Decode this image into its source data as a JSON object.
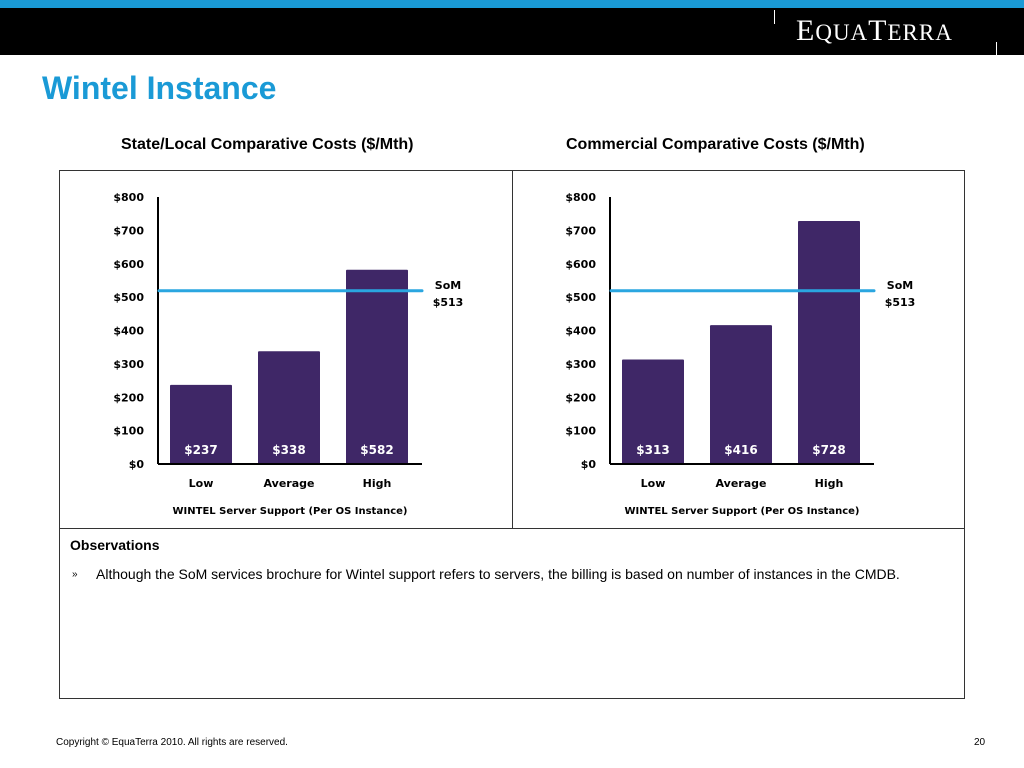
{
  "brand": {
    "accent": "#1a9ad6",
    "bar_color": "#3f2767",
    "som_line_color": "#2aa6e0"
  },
  "logo": {
    "letters": [
      "E",
      "QUA",
      "T",
      "ERRA"
    ]
  },
  "slide": {
    "title": "Wintel Instance",
    "page_number": "20"
  },
  "headings": {
    "left": "State/Local Comparative Costs ($/Mth)",
    "right": "Commercial Comparative Costs ($/Mth)"
  },
  "chart_data": [
    {
      "type": "bar",
      "title": "State/Local Comparative Costs ($/Mth)",
      "categories": [
        "Low",
        "Average",
        "High"
      ],
      "values": [
        237,
        338,
        582
      ],
      "value_labels": [
        "$237",
        "$338",
        "$582"
      ],
      "xlabel": "WINTEL Server Support  (Per OS Instance)",
      "ylabel": "",
      "ylim": [
        0,
        800
      ],
      "yticks": [
        0,
        100,
        200,
        300,
        400,
        500,
        600,
        700,
        800
      ],
      "ytick_labels": [
        "$0",
        "$100",
        "$200",
        "$300",
        "$400",
        "$500",
        "$600",
        "$700",
        "$800"
      ],
      "reference_line": {
        "value": 513,
        "label_line1": "SoM",
        "label_line2": "$513"
      },
      "grid": false,
      "legend": "none"
    },
    {
      "type": "bar",
      "title": "Commercial Comparative Costs ($/Mth)",
      "categories": [
        "Low",
        "Average",
        "High"
      ],
      "values": [
        313,
        416,
        728
      ],
      "value_labels": [
        "$313",
        "$416",
        "$728"
      ],
      "xlabel": "WINTEL Server Support  (Per OS Instance)",
      "ylabel": "",
      "ylim": [
        0,
        800
      ],
      "yticks": [
        0,
        100,
        200,
        300,
        400,
        500,
        600,
        700,
        800
      ],
      "ytick_labels": [
        "$0",
        "$100",
        "$200",
        "$300",
        "$400",
        "$500",
        "$600",
        "$700",
        "$800"
      ],
      "reference_line": {
        "value": 513,
        "label_line1": "SoM",
        "label_line2": "$513"
      },
      "grid": false,
      "legend": "none"
    }
  ],
  "observations": {
    "title": "Observations",
    "bullet": "»",
    "items": [
      "Although the SoM services brochure for Wintel support refers to servers, the billing is based on number of instances in the CMDB."
    ]
  },
  "footer": {
    "copyright": "Copyright © EquaTerra 2010.   All rights are reserved."
  }
}
